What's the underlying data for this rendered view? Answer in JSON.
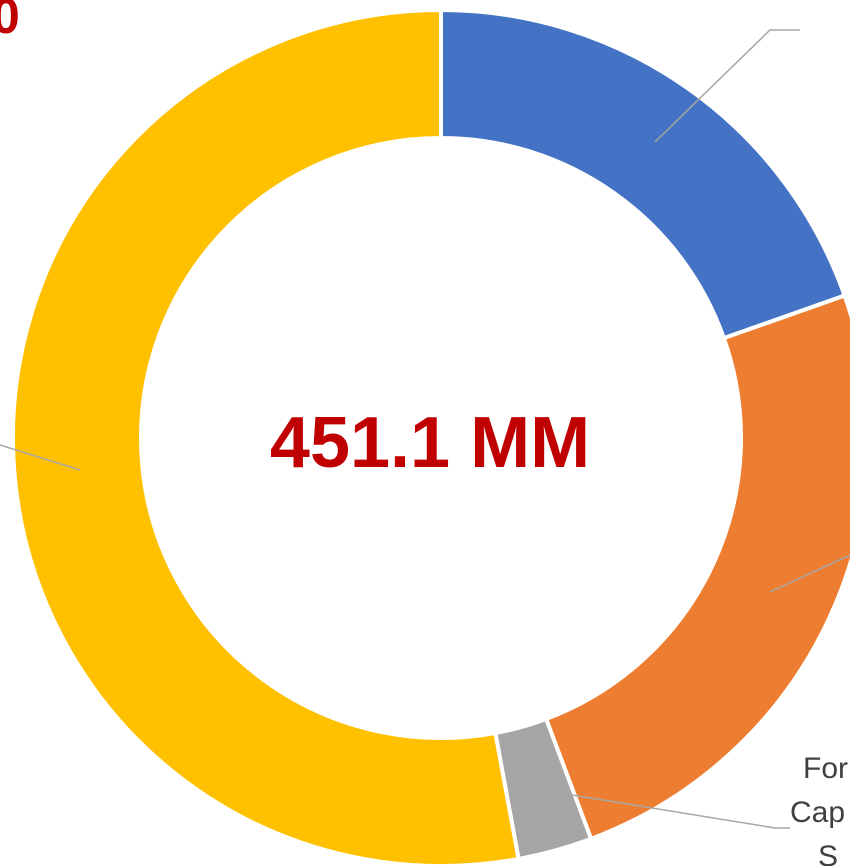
{
  "chart_data": {
    "type": "donut",
    "title": "0",
    "center_label": "451.1 MM",
    "categories": [
      null,
      null,
      [
        "For",
        "Cap",
        "S"
      ],
      null
    ],
    "values": [
      19.6,
      24.7,
      2.8,
      52.9
    ],
    "colors": [
      "#4472c4",
      "#ed7d31",
      "#a5a5a5",
      "#ffc000"
    ]
  }
}
